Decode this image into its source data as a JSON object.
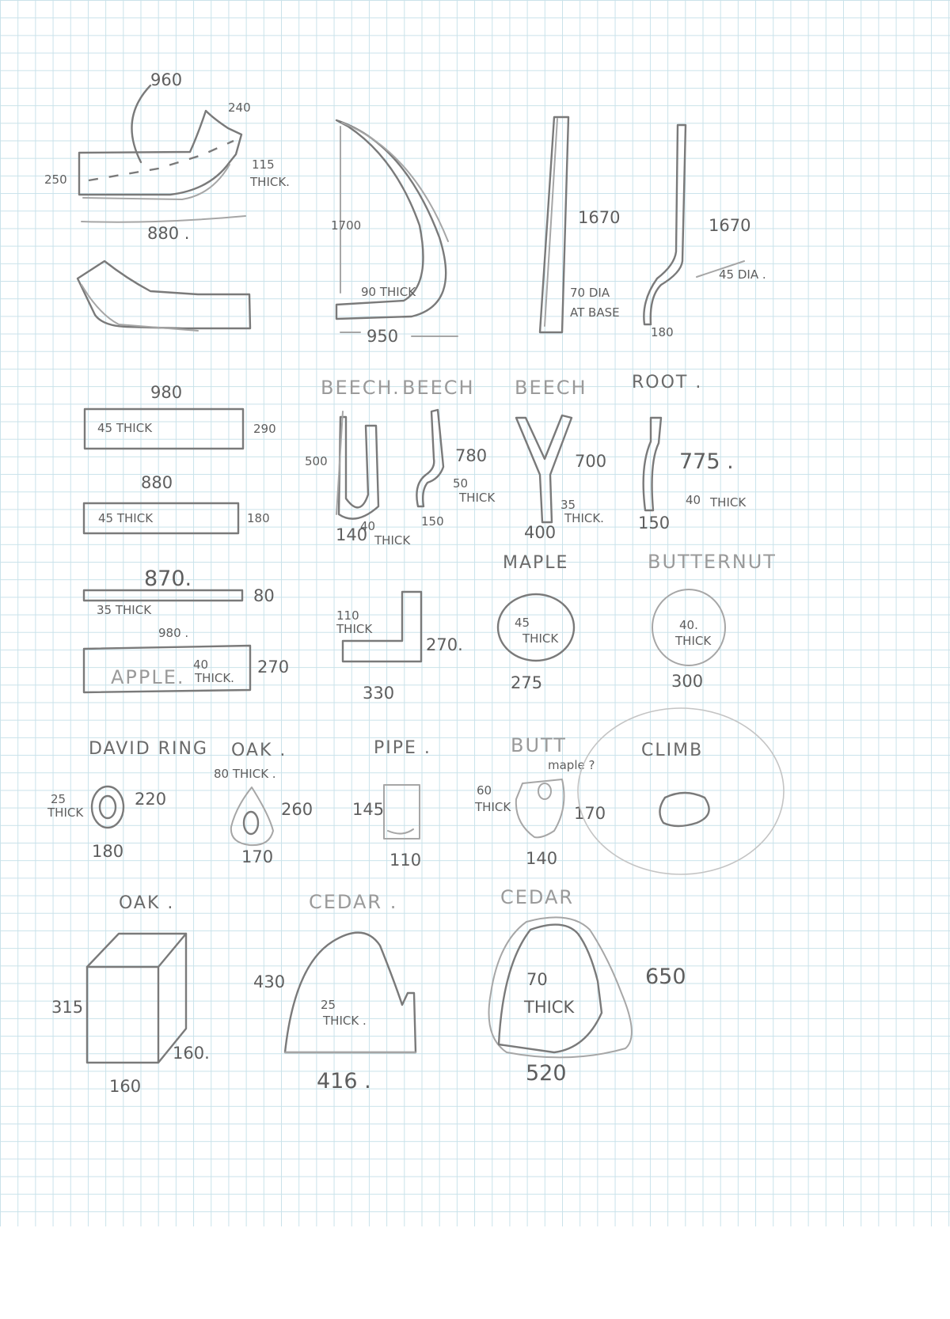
{
  "pieces": {
    "top_slab": {
      "length": "960",
      "end_width": "240",
      "width": "250",
      "thickness": "115",
      "thick_word": "THICK.",
      "bottom_length": "880 ."
    },
    "arc_branch": {
      "height": "1700",
      "thickness": "90 THICK",
      "span": "950"
    },
    "pole_straight": {
      "height": "1670",
      "diameter": "70 DIA",
      "note": "AT BASE"
    },
    "pole_curved": {
      "height": "1670",
      "diameter": "45 DIA .",
      "foot": "180"
    },
    "boards": [
      {
        "length": "980",
        "thickness": "45 THICK",
        "width": "290"
      },
      {
        "length": "880",
        "thickness": "45 THICK",
        "width": "180"
      },
      {
        "length": "870.",
        "thickness": "35 THICK",
        "width": "80"
      },
      {
        "length": "980 .",
        "species": "APPLE.",
        "thick_num": "40",
        "thick_word": "THICK.",
        "width": "270"
      }
    ],
    "beech_u": {
      "species": "BEECH.",
      "height": "500",
      "base": "140",
      "thick_num": "40",
      "thick_word": "THICK"
    },
    "beech_hook": {
      "species": "BEECH",
      "height": "780",
      "thick_num": "50",
      "thick_word": "THICK",
      "base": "150"
    },
    "beech_y": {
      "species": "BEECH",
      "height": "700",
      "thick_num": "35",
      "thick_word": "THICK.",
      "base": "400"
    },
    "root": {
      "species": "ROOT .",
      "height": "775 .",
      "thick_num": "40",
      "thick_word": "THICK",
      "base": "150"
    },
    "l_bracket": {
      "thick_num": "110",
      "thick_word": "THICK",
      "height": "270.",
      "width": "330"
    },
    "maple_round": {
      "species": "MAPLE",
      "thick_num": "45",
      "thick_word": "THICK",
      "diameter": "275"
    },
    "butternut_round": {
      "species": "BUTTERNUT",
      "thick_num": "40.",
      "thick_word": "THICK",
      "diameter": "300"
    },
    "david_ring": {
      "species": "DAVID RING",
      "thick_num": "25",
      "thick_word": "THICK",
      "height": "220",
      "width": "180"
    },
    "oak_small": {
      "species": "OAK .",
      "thickness": "80 THICK .",
      "height": "260",
      "width": "170"
    },
    "pipe": {
      "species": "PIPE .",
      "height": "145",
      "width": "110"
    },
    "butt": {
      "species": "BUTT",
      "note": "maple ?",
      "thick_num": "60",
      "thick_word": "THICK",
      "height": "170",
      "width": "140"
    },
    "climb": {
      "species": "CLIMB"
    },
    "oak_block": {
      "species": "OAK .",
      "height": "315",
      "depth": "160.",
      "width": "160"
    },
    "cedar_arch": {
      "species": "CEDAR .",
      "height": "430",
      "thick_num": "25",
      "thick_word": "THICK .",
      "width": "416 ."
    },
    "cedar_big": {
      "species": "CEDAR",
      "thick_num": "70",
      "thick_word": "THICK",
      "height": "650",
      "width": "520"
    }
  }
}
